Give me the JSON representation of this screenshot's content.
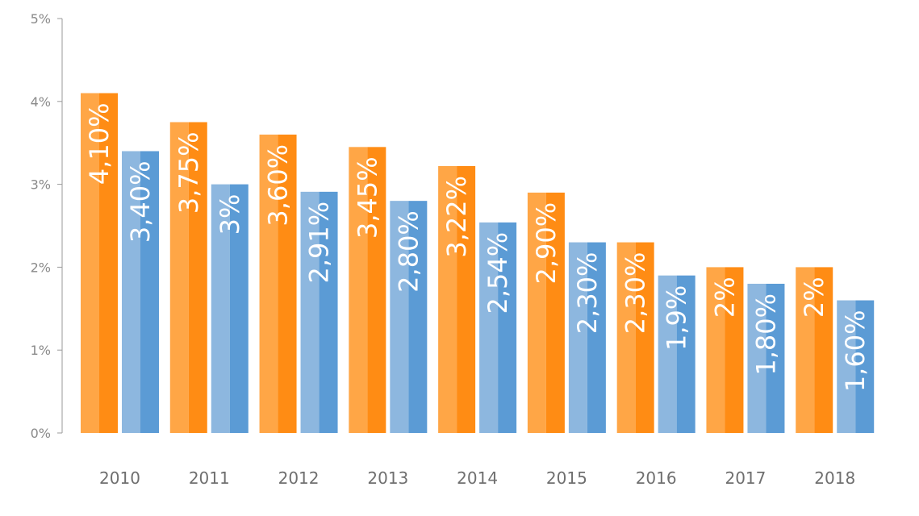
{
  "chart_data": {
    "type": "bar",
    "title": "",
    "xlabel": "",
    "ylabel": "",
    "categories": [
      "2010",
      "2011",
      "2012",
      "2013",
      "2014",
      "2015",
      "2016",
      "2017",
      "2018"
    ],
    "series": [
      {
        "color": "#ff8c14",
        "color_light": "#ffa646",
        "values": [
          4.1,
          3.75,
          3.6,
          3.45,
          3.22,
          2.9,
          2.3,
          2.0,
          2.0
        ],
        "labels": [
          "4,10%",
          "3,75%",
          "3,60%",
          "3,45%",
          "3,22%",
          "2,90%",
          "2,30%",
          "2%",
          "2%"
        ]
      },
      {
        "color": "#5b9bd5",
        "color_light": "#8db7df",
        "values": [
          3.4,
          3.0,
          2.91,
          2.8,
          2.54,
          2.3,
          1.9,
          1.8,
          1.6
        ],
        "labels": [
          "3,40%",
          "3%",
          "2,91%",
          "2,80%",
          "2,54%",
          "2,30%",
          "1,9%",
          "1,80%",
          "1,60%"
        ]
      }
    ],
    "ylim": [
      0,
      5
    ],
    "yticks": [
      {
        "value": 0,
        "label": "0%"
      },
      {
        "value": 1,
        "label": "1%"
      },
      {
        "value": 2,
        "label": "2%"
      },
      {
        "value": 3,
        "label": "3%"
      },
      {
        "value": 4,
        "label": "4%"
      },
      {
        "value": 5,
        "label": "5%"
      }
    ],
    "grid": false,
    "legend": "none"
  }
}
